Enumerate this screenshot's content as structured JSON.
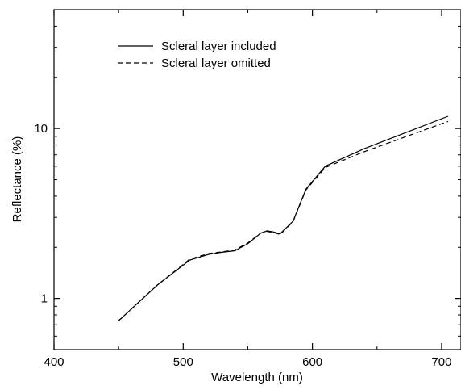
{
  "chart_data": {
    "type": "line",
    "title": "",
    "xlabel": "Wavelength (nm)",
    "ylabel": "Reflectance (%)",
    "xlim": [
      400,
      715
    ],
    "ylim": [
      0.5,
      50
    ],
    "yscale": "log",
    "grid": false,
    "legend_position": "top-left",
    "x_ticks": [
      400,
      500,
      600,
      700
    ],
    "x_tick_labels": [
      "400",
      "500",
      "600",
      "700"
    ],
    "y_ticks": [
      1,
      10
    ],
    "y_tick_labels": [
      "1",
      "10"
    ],
    "series": [
      {
        "name": "Scleral layer included",
        "style": "solid",
        "color": "#000000",
        "x": [
          450,
          480,
          505,
          520,
          530,
          540,
          550,
          560,
          565,
          570,
          575,
          585,
          595,
          610,
          640,
          705
        ],
        "y": [
          0.74,
          1.2,
          1.68,
          1.82,
          1.87,
          1.91,
          2.1,
          2.42,
          2.5,
          2.46,
          2.4,
          2.85,
          4.4,
          6.0,
          7.6,
          11.8
        ]
      },
      {
        "name": "Scleral layer omitted",
        "style": "dashed",
        "color": "#000000",
        "x": [
          450,
          480,
          505,
          520,
          530,
          540,
          550,
          560,
          565,
          570,
          575,
          585,
          595,
          610,
          640,
          705
        ],
        "y": [
          0.74,
          1.2,
          1.7,
          1.84,
          1.88,
          1.93,
          2.12,
          2.43,
          2.48,
          2.44,
          2.38,
          2.83,
          4.35,
          5.9,
          7.3,
          11.0
        ]
      }
    ]
  }
}
